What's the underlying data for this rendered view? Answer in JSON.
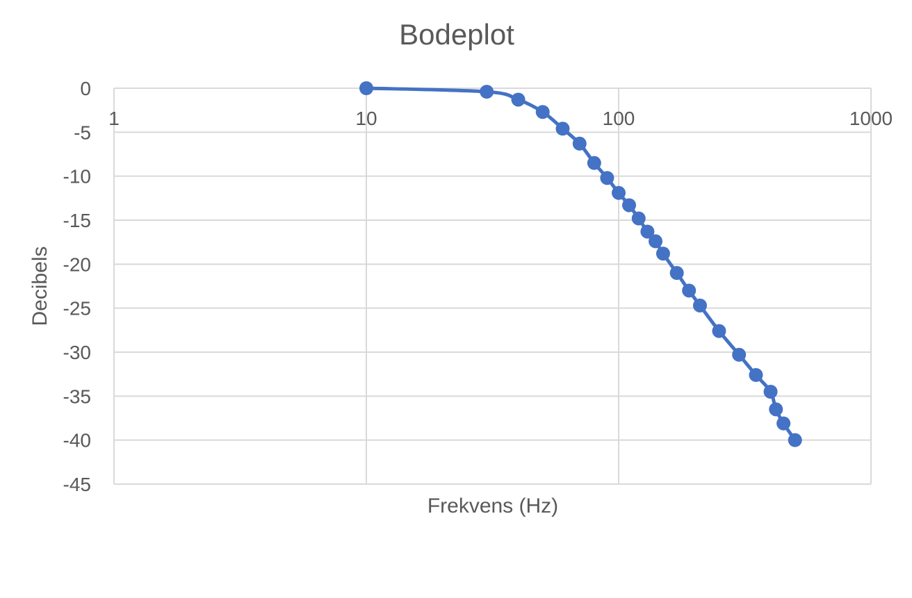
{
  "chart_data": {
    "type": "line",
    "title": "Bodeplot",
    "xlabel": "Frekvens (Hz)",
    "ylabel": "Decibels",
    "xscale": "log",
    "xlim": [
      1,
      1000
    ],
    "ylim": [
      -45,
      0
    ],
    "x_ticks": [
      "1",
      "10",
      "100",
      "1000"
    ],
    "y_ticks": [
      "0",
      "-5",
      "-10",
      "-15",
      "-20",
      "-25",
      "-30",
      "-35",
      "-40",
      "-45"
    ],
    "grid": true,
    "legend": "none",
    "series": [
      {
        "color": "#4472C4",
        "marker": "circle",
        "x": [
          10,
          30,
          40,
          50,
          60,
          70,
          80,
          90,
          100,
          110,
          120,
          130,
          140,
          150,
          170,
          190,
          210,
          250,
          300,
          350,
          400,
          420,
          450,
          500
        ],
        "y": [
          0,
          -0.4,
          -1.3,
          -2.7,
          -4.6,
          -6.3,
          -8.5,
          -10.2,
          -11.9,
          -13.3,
          -14.8,
          -16.3,
          -17.4,
          -18.8,
          -21.0,
          -23.0,
          -24.7,
          -27.6,
          -30.3,
          -32.6,
          -34.5,
          -36.5,
          -38.1,
          -40.0
        ]
      }
    ]
  }
}
